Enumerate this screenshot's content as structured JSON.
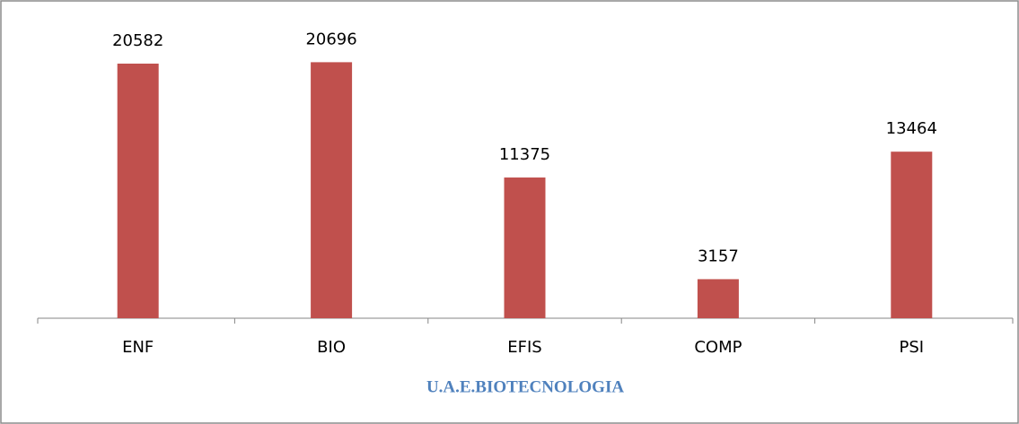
{
  "chart_data": {
    "type": "bar",
    "x_label": "U.A.E.BIOTECNOLOGIA",
    "categories": [
      "ENF",
      "BIO",
      "EFIS",
      "COMP",
      "PSI"
    ],
    "values": [
      20582,
      20696,
      11375,
      3157,
      13464
    ],
    "color": "#c0504d",
    "ylim": [
      0,
      25000
    ]
  }
}
